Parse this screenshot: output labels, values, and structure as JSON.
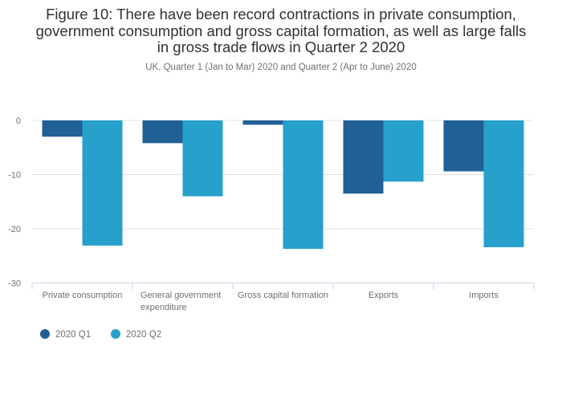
{
  "chart_data": {
    "type": "bar",
    "title": "Figure 10: There have been record contractions in private consumption, government consumption and gross capital formation, as well as large falls in gross trade flows in Quarter 2 2020",
    "title_lines": [
      "Figure 10: There have been record contractions in private consumption,",
      "government consumption and gross capital formation, as well as large falls",
      "in gross trade flows in Quarter 2 2020"
    ],
    "subtitle": "UK, Quarter 1 (Jan to Mar) 2020 and Quarter 2 (Apr to June) 2020",
    "categories": [
      [
        "Private consumption"
      ],
      [
        "General government",
        "expenditure"
      ],
      [
        "Gross capital formation"
      ],
      [
        "Exports"
      ],
      [
        "Imports"
      ]
    ],
    "series": [
      {
        "name": "2020 Q1",
        "color": "#206095",
        "values": [
          -3.0,
          -4.2,
          -0.8,
          -13.5,
          -9.4
        ]
      },
      {
        "name": "2020 Q2",
        "color": "#27a0cc",
        "values": [
          -23.1,
          -14.0,
          -23.7,
          -11.3,
          -23.4
        ]
      }
    ],
    "xlabel": "",
    "ylabel": "",
    "ylim": [
      -30,
      0
    ],
    "yticks": [
      0,
      -10,
      -20,
      -30
    ],
    "grid": true,
    "legend_position": "bottom-left"
  }
}
